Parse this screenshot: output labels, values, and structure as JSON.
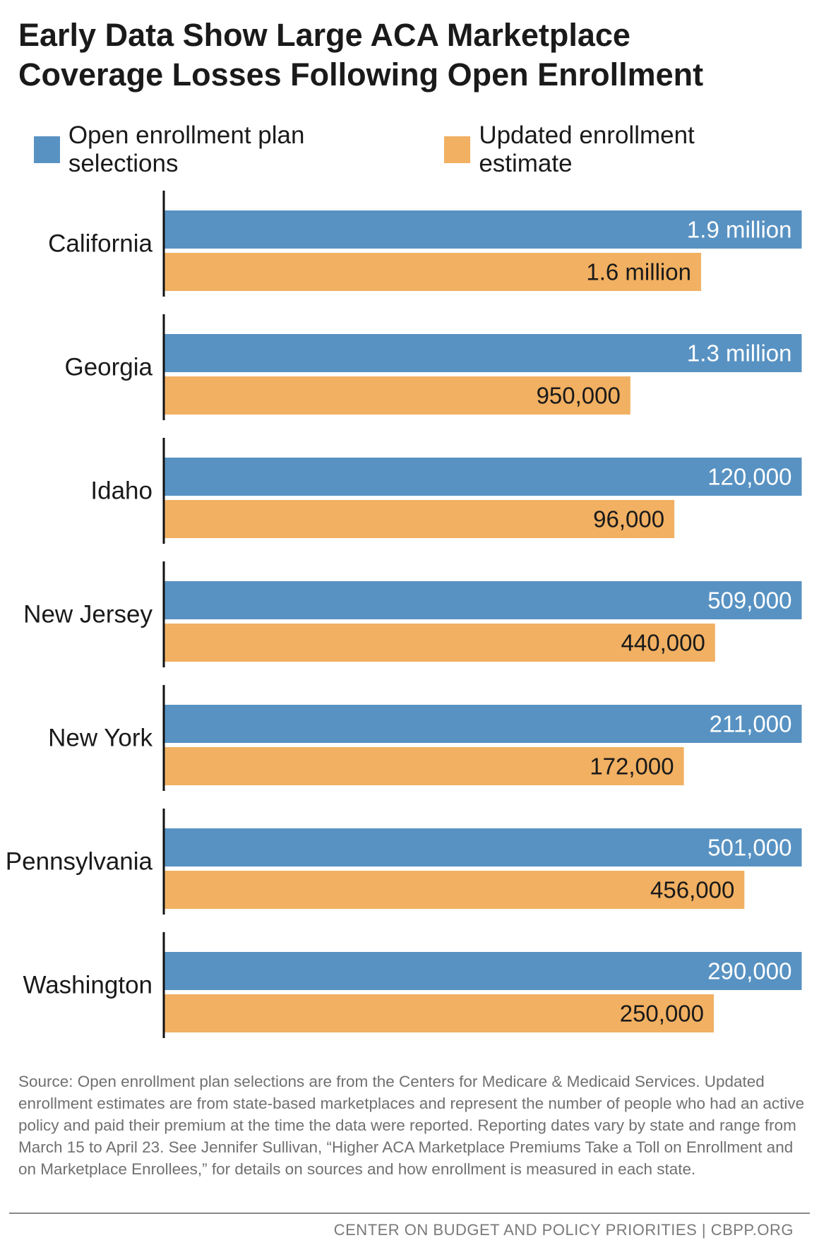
{
  "title_line1": "Early Data Show Large ACA Marketplace",
  "title_line2": "Coverage Losses Following Open Enrollment",
  "legend": [
    {
      "label": "Open enrollment plan selections",
      "color": "#5892c2"
    },
    {
      "label": "Updated enrollment estimate",
      "color": "#f1b062"
    }
  ],
  "chart_data": {
    "type": "bar",
    "orientation": "horizontal",
    "categories": [
      "California",
      "Georgia",
      "Idaho",
      "New Jersey",
      "New York",
      "Pennsylvania",
      "Washington"
    ],
    "series": [
      {
        "name": "Open enrollment plan selections",
        "color": "#5892c2",
        "relative_length": [
          1,
          1,
          1,
          1,
          1,
          1,
          1
        ],
        "labels": [
          "1.9 million",
          "1.3 million",
          "120,000",
          "509,000",
          "211,000",
          "501,000",
          "290,000"
        ]
      },
      {
        "name": "Updated enrollment estimate",
        "color": "#f1b062",
        "relative_length": [
          0.842,
          0.731,
          0.8,
          0.864,
          0.815,
          0.91,
          0.862
        ],
        "labels": [
          "1.6 million",
          "950,000",
          "96,000",
          "440,000",
          "172,000",
          "456,000",
          "250,000"
        ]
      }
    ],
    "title": "Early Data Show Large ACA Marketplace Coverage Losses Following Open Enrollment",
    "legend_position": "top-left",
    "grid": false
  },
  "source": "Source: Open enrollment plan selections are from the Centers for Medicare & Medicaid Services. Updated enrollment estimates are from state-based marketplaces and represent the number of people who had an active policy and paid their premium at the time the data were reported. Reporting dates vary by state and range from March 15 to April 23. See Jennifer Sullivan, “Higher ACA Marketplace Premiums Take a Toll on Enrollment and on Marketplace Enrollees,” for details on sources and how enrollment is measured in each state.",
  "footer": "CENTER ON BUDGET AND POLICY PRIORITIES | CBPP.ORG"
}
